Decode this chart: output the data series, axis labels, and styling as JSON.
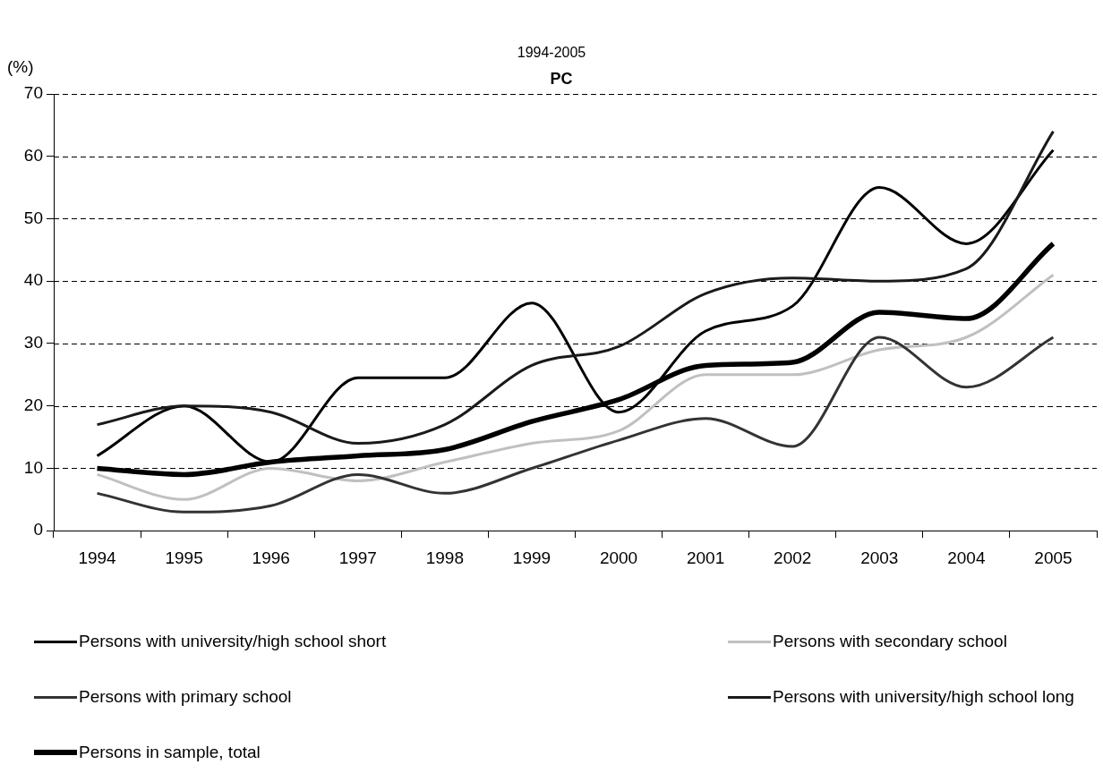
{
  "chart_data": {
    "type": "line",
    "title": "PC",
    "subtitle": "1994-2005",
    "ylabel": "(%)",
    "categories": [
      "1994",
      "1995",
      "1996",
      "1997",
      "1998",
      "1999",
      "2000",
      "2001",
      "2002",
      "2003",
      "2004",
      "2005"
    ],
    "series": [
      {
        "name": "Persons with university/high school short",
        "color": "#000000",
        "values": [
          12,
          20,
          11,
          24.5,
          24.5,
          36.5,
          19,
          32,
          36,
          55,
          46,
          61
        ]
      },
      {
        "name": "Persons with secondary school",
        "color": "#c0c0c0",
        "values": [
          9,
          5,
          10,
          8,
          11,
          14,
          16,
          25,
          25,
          29,
          31,
          41
        ]
      },
      {
        "name": "Persons with primary school",
        "color": "#333333",
        "values": [
          6,
          3,
          4,
          9,
          6,
          10,
          14.5,
          18,
          13.5,
          31,
          23,
          31
        ]
      },
      {
        "name": "Persons with university/high school long",
        "color": "#1a1a1a",
        "values": [
          17,
          20,
          19,
          14,
          17,
          26.5,
          29.5,
          38,
          40.5,
          40,
          42,
          64
        ]
      },
      {
        "name": "Persons in sample, total",
        "color": "#000000",
        "values": [
          10,
          9,
          11,
          12,
          13,
          17.5,
          21,
          26.5,
          27,
          35,
          34,
          46
        ]
      }
    ],
    "ylim": [
      0,
      70
    ],
    "yticks": [
      0,
      10,
      20,
      30,
      40,
      50,
      60,
      70
    ],
    "grid": "y",
    "legend": "bottom",
    "marker": "none",
    "line_style": "solid"
  }
}
